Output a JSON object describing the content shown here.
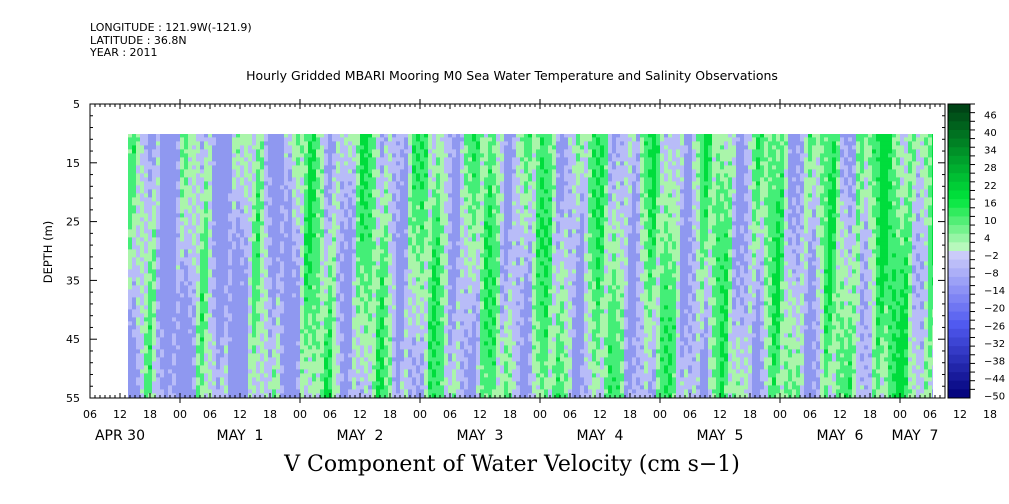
{
  "header": {
    "longitude": "LONGITUDE : 121.9W(-121.9)",
    "latitude": "LATITUDE : 36.8N",
    "year": "YEAR : 2011"
  },
  "chart_data": {
    "type": "heatmap",
    "title": "Hourly Gridded MBARI Mooring M0 Sea Water Temperature and Salinity Observations",
    "xlabel": "V Component of Water Velocity (cm s−1)",
    "ylabel": "DEPTH (m)",
    "y_ticks": [
      "5",
      "15",
      "25",
      "35",
      "45",
      "55"
    ],
    "y_range": [
      5,
      55
    ],
    "y_inverted": true,
    "data_depth_range": [
      10,
      55
    ],
    "x_hour_ticks": [
      "06",
      "12",
      "18",
      "00",
      "06",
      "12",
      "18",
      "00",
      "06",
      "12",
      "18",
      "00",
      "06",
      "12",
      "18",
      "00",
      "06",
      "12",
      "18",
      "00",
      "06",
      "12",
      "18",
      "00",
      "06",
      "12",
      "18",
      "00",
      "06",
      "12",
      "18",
      "00",
      "06"
    ],
    "x_day_labels": [
      "APR 30",
      "MAY  1",
      "MAY  2",
      "MAY  3",
      "MAY  4",
      "MAY  5",
      "MAY  6",
      "MAY  7"
    ],
    "colorbar_labels": [
      "46",
      "40",
      "34",
      "28",
      "22",
      "16",
      "10",
      "4",
      "-2",
      "-8",
      "-14",
      "-20",
      "-26",
      "-32",
      "-38",
      "-44",
      "-50"
    ],
    "colorbar_range": [
      -50,
      52
    ],
    "colors": {
      "strong_positive": "#00dd3c",
      "mid_positive": "#44ee77",
      "weak_positive": "#aaf5aa",
      "weak_negative": "#b8bcf8",
      "mid_negative": "#8f98f0",
      "strong_negative": "#00008a"
    }
  }
}
